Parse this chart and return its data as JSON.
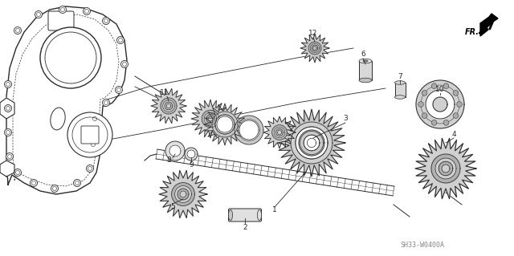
{
  "background_color": "#ffffff",
  "watermark": "SH33-W0400A",
  "line_color": "#2a2a2a",
  "gray_fill": "#e8e8e8",
  "light_gray": "#f0f0f0"
}
